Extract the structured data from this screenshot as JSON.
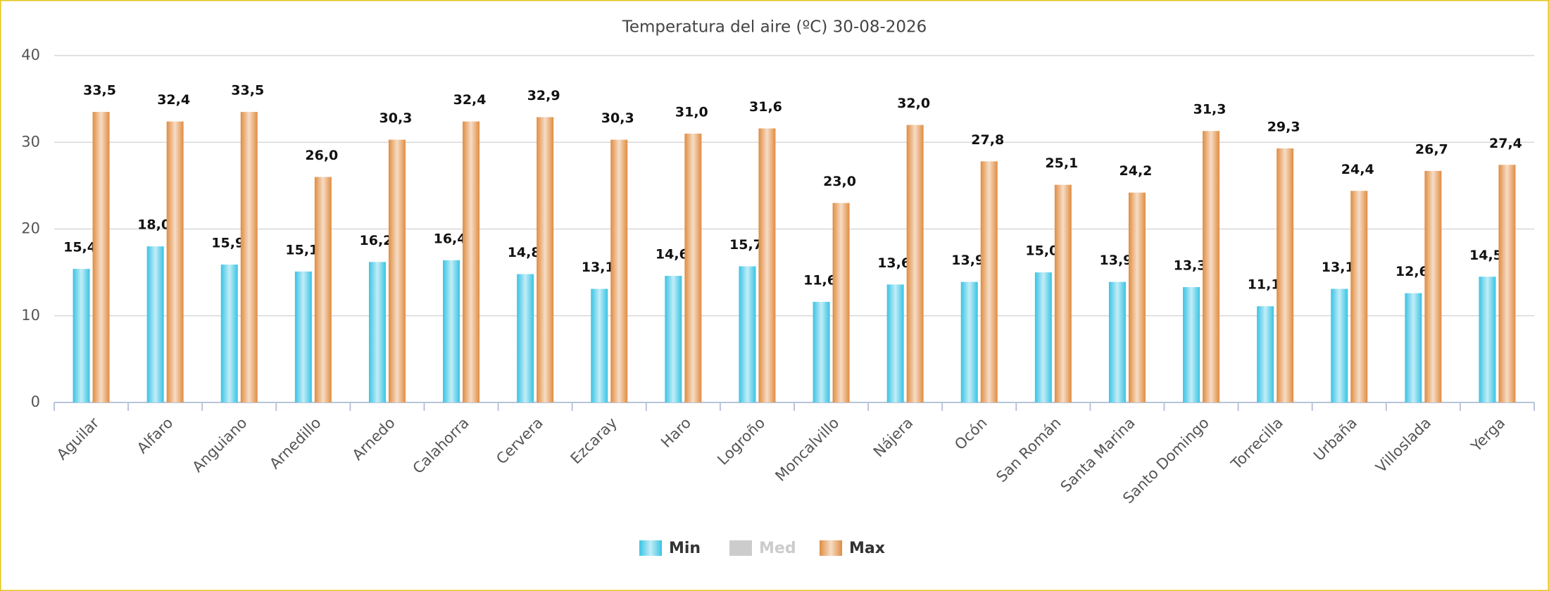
{
  "chart_data": {
    "type": "bar",
    "title": "Temperatura del aire (ºC) 30-08-2026",
    "categories": [
      "Aguilar",
      "Alfaro",
      "Anguiano",
      "Arnedillo",
      "Arnedo",
      "Calahorra",
      "Cervera",
      "Ezcaray",
      "Haro",
      "Logroño",
      "Moncalvillo",
      "Nájera",
      "Ocón",
      "San Román",
      "Santa Marina",
      "Santo Domingo",
      "Torrecilla",
      "Urbaña",
      "Villoslada",
      "Yerga"
    ],
    "series": [
      {
        "name": "Min",
        "color": "#38c4e4",
        "visible": true,
        "values": [
          15.4,
          18.0,
          15.9,
          15.1,
          16.2,
          16.4,
          14.8,
          13.1,
          14.6,
          15.7,
          11.6,
          13.6,
          13.9,
          15.0,
          13.9,
          13.3,
          11.1,
          13.1,
          12.6,
          14.5
        ],
        "value_labels": [
          "15,4",
          "18,0",
          "15,9",
          "15,1",
          "16,2",
          "16,4",
          "14,8",
          "13,1",
          "14,6",
          "15,7",
          "11,6",
          "13,6",
          "13,9",
          "15,0",
          "13,9",
          "13,3",
          "11,1",
          "13,1",
          "12,6",
          "14,5"
        ]
      },
      {
        "name": "Med",
        "color": "#cccccc",
        "visible": false,
        "values": [
          null,
          null,
          null,
          null,
          null,
          null,
          null,
          null,
          null,
          null,
          null,
          null,
          null,
          null,
          null,
          null,
          null,
          null,
          null,
          null
        ]
      },
      {
        "name": "Max",
        "color": "#e08c40",
        "visible": true,
        "values": [
          33.5,
          32.4,
          33.5,
          26.0,
          30.3,
          32.4,
          32.9,
          30.3,
          31.0,
          31.6,
          23.0,
          32.0,
          27.8,
          25.1,
          24.2,
          31.3,
          29.3,
          24.4,
          26.7,
          27.4
        ],
        "value_labels": [
          "33,5",
          "32,4",
          "33,5",
          "26,0",
          "30,3",
          "32,4",
          "32,9",
          "30,3",
          "31,0",
          "31,6",
          "23,0",
          "32,0",
          "27,8",
          "25,1",
          "24,2",
          "31,3",
          "29,3",
          "24,4",
          "26,7",
          "27,4"
        ]
      }
    ],
    "ylim": [
      0,
      40
    ],
    "yticks": [
      0,
      10,
      20,
      30,
      40
    ],
    "grid": true,
    "legend": "bottom"
  }
}
